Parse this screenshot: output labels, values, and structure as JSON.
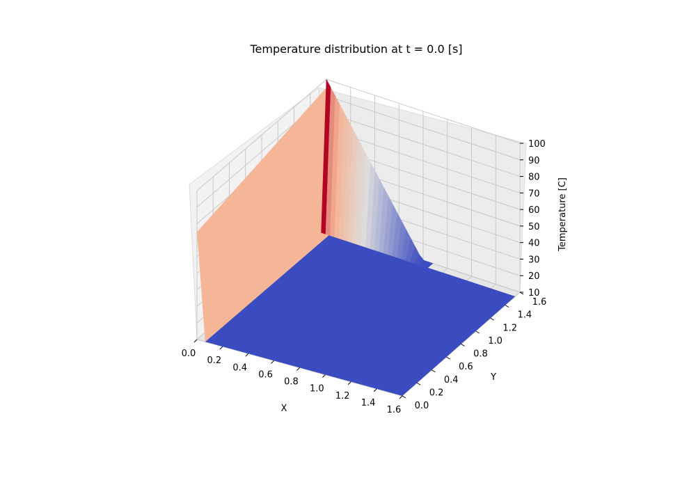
{
  "chart_data": {
    "type": "surface3d",
    "title": "Temperature distribution at t = 0.0 [s]",
    "xlabel": "X",
    "ylabel": "Y",
    "zlabel": "Temperature [C]",
    "xlim": [
      0,
      1.6
    ],
    "ylim": [
      0,
      1.6
    ],
    "zlim": [
      10,
      100
    ],
    "x_ticks": [
      "0.0",
      "0.2",
      "0.4",
      "0.6",
      "0.8",
      "1.0",
      "1.2",
      "1.4",
      "1.6"
    ],
    "y_ticks": [
      "0.0",
      "0.2",
      "0.4",
      "0.6",
      "0.8",
      "1.0",
      "1.2",
      "1.4",
      "1.6"
    ],
    "z_ticks": [
      "10",
      "20",
      "30",
      "40",
      "50",
      "60",
      "70",
      "80",
      "90",
      "100"
    ],
    "grid": true,
    "colormap": "coolwarm",
    "colors": {
      "high": "#b40426",
      "mid": "#f5b597",
      "neutral": "#dddddd",
      "low": "#3b4cc0",
      "pane": "#f2f2f2",
      "grid": "#c8c8c8"
    },
    "boundary_temperatures": {
      "x0_edge": 75,
      "y_max_edge_start": 100,
      "y_max_edge_end": 0,
      "interior": 0
    }
  }
}
